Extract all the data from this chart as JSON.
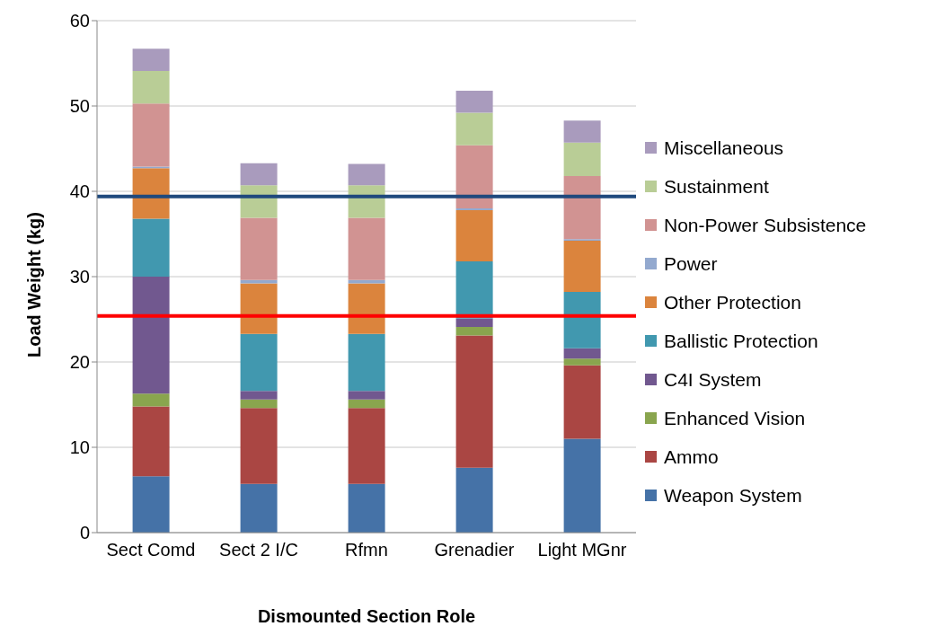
{
  "chart_data": {
    "type": "bar",
    "stacked": true,
    "xlabel": "Dismounted Section Role",
    "ylabel": "Load Weight (kg)",
    "categories": [
      "Sect Comd",
      "Sect 2 I/C",
      "Rfmn",
      "Grenadier",
      "Light MGnr"
    ],
    "series": [
      {
        "name": "Weapon System",
        "color": "#4572a7",
        "values": [
          6.6,
          5.7,
          5.7,
          7.6,
          11.0
        ]
      },
      {
        "name": "Ammo",
        "color": "#aa4643",
        "values": [
          8.2,
          8.9,
          8.9,
          15.5,
          8.6
        ]
      },
      {
        "name": "Enhanced Vision",
        "color": "#89a54e",
        "values": [
          1.5,
          1.0,
          1.0,
          1.0,
          0.8
        ]
      },
      {
        "name": "C4I System",
        "color": "#71588f",
        "values": [
          13.7,
          1.0,
          1.0,
          1.0,
          1.2
        ]
      },
      {
        "name": "Ballistic Protection",
        "color": "#4198af",
        "values": [
          6.8,
          6.7,
          6.7,
          6.7,
          6.6
        ]
      },
      {
        "name": "Other Protection",
        "color": "#db843d",
        "values": [
          5.9,
          5.9,
          5.9,
          6.0,
          6.0
        ]
      },
      {
        "name": "Power",
        "color": "#93a9cf",
        "values": [
          0.2,
          0.4,
          0.4,
          0.2,
          0.2
        ]
      },
      {
        "name": "Non-Power Subsistence",
        "color": "#d19392",
        "values": [
          7.4,
          7.3,
          7.3,
          7.4,
          7.4
        ]
      },
      {
        "name": "Sustainment",
        "color": "#b9cd96",
        "values": [
          3.8,
          3.8,
          3.8,
          3.8,
          3.9
        ]
      },
      {
        "name": "Miscellaneous",
        "color": "#a99bbd",
        "values": [
          2.6,
          2.6,
          2.5,
          2.6,
          2.6
        ]
      }
    ],
    "ylim": [
      0,
      60
    ],
    "yticks": [
      0,
      10,
      20,
      30,
      40,
      50,
      60
    ],
    "grid": "y",
    "legend": "right",
    "ref_lines": [
      {
        "axis": "y",
        "value": 39.4,
        "color": "#1f497d"
      },
      {
        "axis": "y",
        "value": 25.4,
        "color": "#ff0000"
      }
    ]
  }
}
